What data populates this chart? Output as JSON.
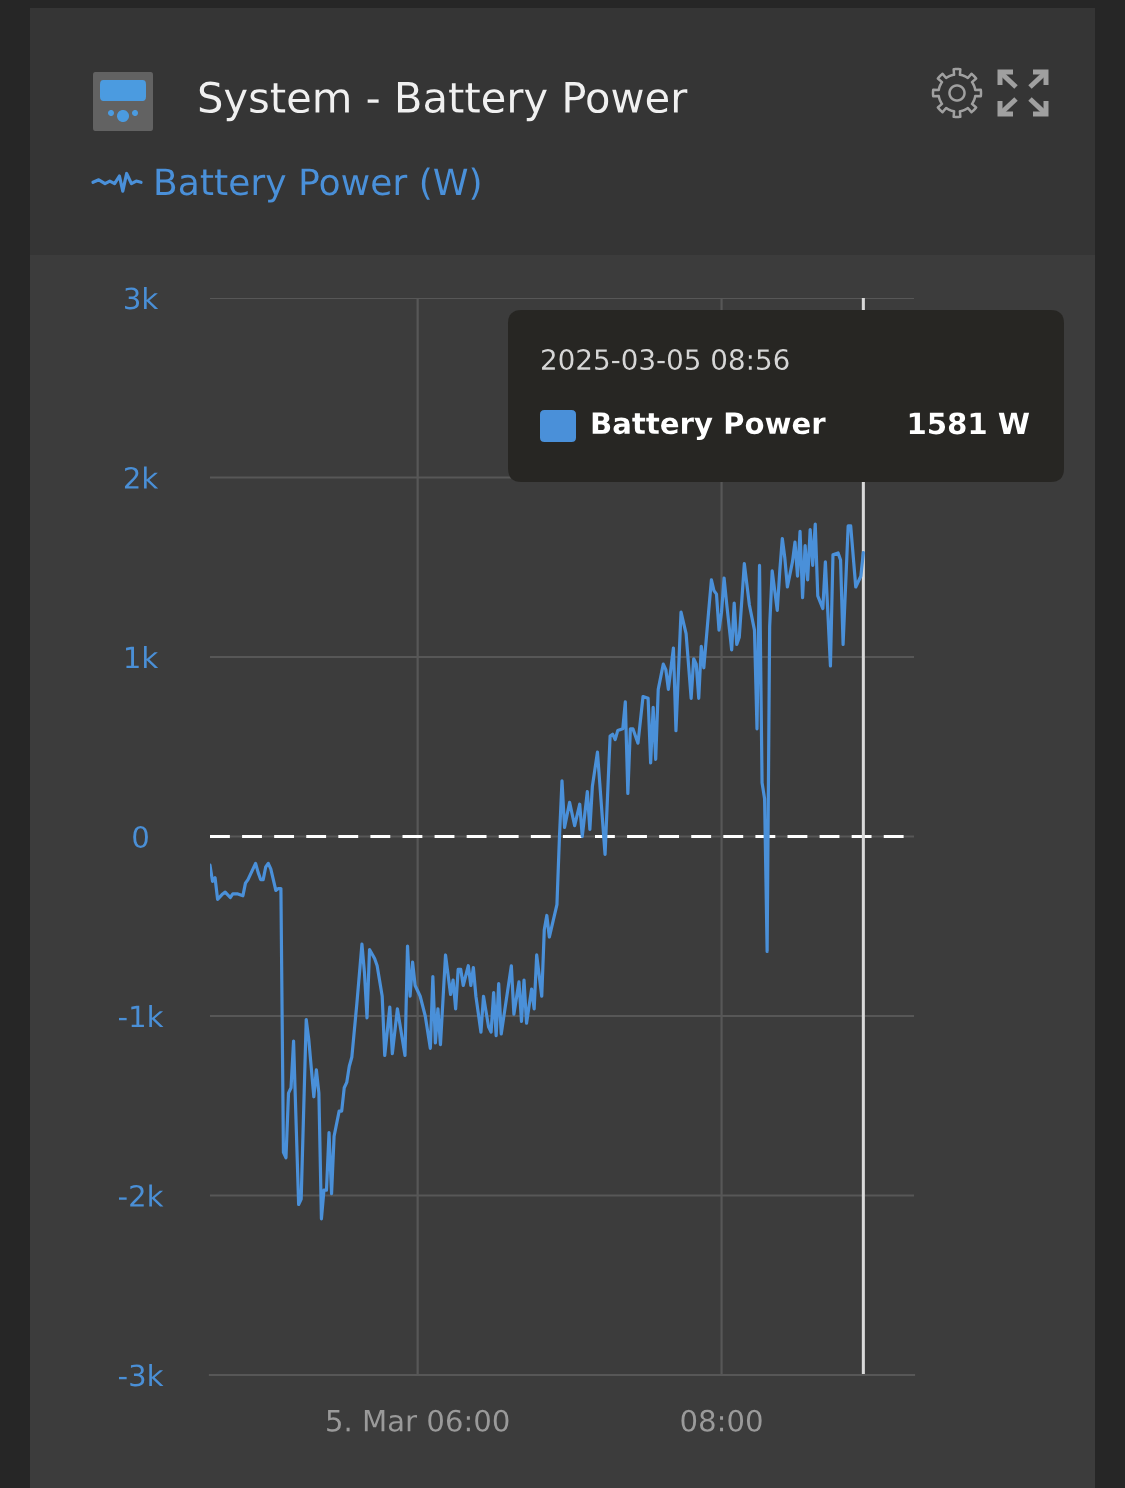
{
  "chart_data": {
    "type": "line",
    "title": "System - Battery Power",
    "x": [
      "2025-03-05T04:38",
      "2025-03-05T04:39",
      "2025-03-05T04:40",
      "2025-03-05T04:41",
      "2025-03-05T04:43",
      "2025-03-05T04:44",
      "2025-03-05T04:46",
      "2025-03-05T04:47",
      "2025-03-05T04:49",
      "2025-03-05T04:51",
      "2025-03-05T04:52",
      "2025-03-05T04:53",
      "2025-03-05T04:56",
      "2025-03-05T04:57",
      "2025-03-05T04:58",
      "2025-03-05T04:59",
      "2025-03-05T05:00",
      "2025-03-05T05:01",
      "2025-03-05T05:02",
      "2025-03-05T05:04",
      "2025-03-05T05:05",
      "2025-03-05T05:06",
      "2025-03-05T05:07",
      "2025-03-05T05:08",
      "2025-03-05T05:09",
      "2025-03-05T05:10",
      "2025-03-05T05:11",
      "2025-03-05T05:13",
      "2025-03-05T05:14",
      "2025-03-05T05:16",
      "2025-03-05T05:17",
      "2025-03-05T05:19",
      "2025-03-05T05:20",
      "2025-03-05T05:21",
      "2025-03-05T05:22",
      "2025-03-05T05:23",
      "2025-03-05T05:24",
      "2025-03-05T05:25",
      "2025-03-05T05:26",
      "2025-03-05T05:27",
      "2025-03-05T05:29",
      "2025-03-05T05:30",
      "2025-03-05T05:31",
      "2025-03-05T05:32",
      "2025-03-05T05:33",
      "2025-03-05T05:34",
      "2025-03-05T05:36",
      "2025-03-05T05:38",
      "2025-03-05T05:39",
      "2025-03-05T05:40",
      "2025-03-05T05:41",
      "2025-03-05T05:43",
      "2025-03-05T05:44",
      "2025-03-05T05:46",
      "2025-03-05T05:47",
      "2025-03-05T05:49",
      "2025-03-05T05:50",
      "2025-03-05T05:52",
      "2025-03-05T05:55",
      "2025-03-05T05:56",
      "2025-03-05T05:57",
      "2025-03-05T05:58",
      "2025-03-05T05:59",
      "2025-03-05T06:01",
      "2025-03-05T06:03",
      "2025-03-05T06:05",
      "2025-03-05T06:06",
      "2025-03-05T06:07",
      "2025-03-05T06:08",
      "2025-03-05T06:09",
      "2025-03-05T06:11",
      "2025-03-05T06:13",
      "2025-03-05T06:14",
      "2025-03-05T06:15",
      "2025-03-05T06:16",
      "2025-03-05T06:17",
      "2025-03-05T06:18",
      "2025-03-05T06:20",
      "2025-03-05T06:21",
      "2025-03-05T06:22",
      "2025-03-05T06:23",
      "2025-03-05T06:25",
      "2025-03-05T06:26",
      "2025-03-05T06:28",
      "2025-03-05T06:29",
      "2025-03-05T06:30",
      "2025-03-05T06:31",
      "2025-03-05T06:32",
      "2025-03-05T06:33",
      "2025-03-05T06:37",
      "2025-03-05T06:38",
      "2025-03-05T06:40",
      "2025-03-05T06:41",
      "2025-03-05T06:42",
      "2025-03-05T06:43",
      "2025-03-05T06:45",
      "2025-03-05T06:46",
      "2025-03-05T06:47",
      "2025-03-05T06:49",
      "2025-03-05T06:50",
      "2025-03-05T06:51",
      "2025-03-05T06:52",
      "2025-03-05T06:55",
      "2025-03-05T06:56",
      "2025-03-05T06:57",
      "2025-03-05T06:58",
      "2025-03-05T07:00",
      "2025-03-05T07:02",
      "2025-03-05T07:04",
      "2025-03-05T07:05",
      "2025-03-05T07:07",
      "2025-03-05T07:08",
      "2025-03-05T07:09",
      "2025-03-05T07:11",
      "2025-03-05T07:14",
      "2025-03-05T07:16",
      "2025-03-05T07:17",
      "2025-03-05T07:18",
      "2025-03-05T07:19",
      "2025-03-05T07:21",
      "2025-03-05T07:22",
      "2025-03-05T07:23",
      "2025-03-05T07:24",
      "2025-03-05T07:25",
      "2025-03-05T07:27",
      "2025-03-05T07:29",
      "2025-03-05T07:31",
      "2025-03-05T07:32",
      "2025-03-05T07:33",
      "2025-03-05T07:34",
      "2025-03-05T07:35",
      "2025-03-05T07:37",
      "2025-03-05T07:38",
      "2025-03-05T07:39",
      "2025-03-05T07:41",
      "2025-03-05T07:42",
      "2025-03-05T07:44",
      "2025-03-05T07:46",
      "2025-03-05T07:48",
      "2025-03-05T07:49",
      "2025-03-05T07:50",
      "2025-03-05T07:51",
      "2025-03-05T07:52",
      "2025-03-05T07:53",
      "2025-03-05T07:55",
      "2025-03-05T07:56",
      "2025-03-05T07:57",
      "2025-03-05T07:58",
      "2025-03-05T07:59",
      "2025-03-05T08:00",
      "2025-03-05T08:01",
      "2025-03-05T08:02",
      "2025-03-05T08:04",
      "2025-03-05T08:05",
      "2025-03-05T08:06",
      "2025-03-05T08:07",
      "2025-03-05T08:09",
      "2025-03-05T08:11",
      "2025-03-05T08:13",
      "2025-03-05T08:14",
      "2025-03-05T08:15",
      "2025-03-05T08:16",
      "2025-03-05T08:17",
      "2025-03-05T08:18",
      "2025-03-05T08:19",
      "2025-03-05T08:20",
      "2025-03-05T08:22",
      "2025-03-05T08:23",
      "2025-03-05T08:24",
      "2025-03-05T08:25",
      "2025-03-05T08:26",
      "2025-03-05T08:28",
      "2025-03-05T08:29",
      "2025-03-05T08:30",
      "2025-03-05T08:31",
      "2025-03-05T08:32",
      "2025-03-05T08:33",
      "2025-03-05T08:34",
      "2025-03-05T08:35",
      "2025-03-05T08:36",
      "2025-03-05T08:37",
      "2025-03-05T08:38",
      "2025-03-05T08:40",
      "2025-03-05T08:41",
      "2025-03-05T08:43",
      "2025-03-05T08:44",
      "2025-03-05T08:46",
      "2025-03-05T08:47",
      "2025-03-05T08:48",
      "2025-03-05T08:50",
      "2025-03-05T08:51",
      "2025-03-05T08:53",
      "2025-03-05T08:55",
      "2025-03-05T08:56"
    ],
    "series": [
      {
        "name": "Battery Power (W)",
        "color": "#4a90d9",
        "values": [
          -160,
          -250,
          -230,
          -350,
          -320,
          -310,
          -340,
          -320,
          -320,
          -330,
          -260,
          -240,
          -150,
          -200,
          -240,
          -240,
          -170,
          -150,
          -180,
          -300,
          -290,
          -290,
          -1760,
          -1790,
          -1430,
          -1400,
          -1140,
          -2050,
          -2020,
          -1020,
          -1130,
          -1450,
          -1300,
          -1430,
          -2130,
          -1970,
          -1970,
          -1650,
          -1990,
          -1670,
          -1530,
          -1530,
          -1400,
          -1370,
          -1280,
          -1230,
          -930,
          -600,
          -760,
          -1010,
          -630,
          -680,
          -720,
          -890,
          -1220,
          -950,
          -1210,
          -960,
          -1220,
          -610,
          -890,
          -700,
          -830,
          -890,
          -1000,
          -1180,
          -780,
          -1150,
          -960,
          -1160,
          -660,
          -880,
          -800,
          -960,
          -740,
          -740,
          -830,
          -720,
          -830,
          -730,
          -890,
          -1090,
          -890,
          -1060,
          -1090,
          -870,
          -1110,
          -820,
          -1100,
          -720,
          -990,
          -810,
          -1030,
          -800,
          -1040,
          -850,
          -960,
          -660,
          -890,
          -520,
          -440,
          -560,
          -380,
          0,
          310,
          50,
          190,
          60,
          180,
          0,
          250,
          40,
          280,
          470,
          -100,
          560,
          570,
          540,
          590,
          600,
          750,
          240,
          600,
          600,
          520,
          780,
          770,
          410,
          720,
          430,
          820,
          960,
          930,
          820,
          1050,
          590,
          1250,
          1130,
          770,
          990,
          960,
          770,
          1060,
          940,
          1270,
          1430,
          1370,
          1350,
          1150,
          1250,
          1440,
          1300,
          1040,
          1300,
          1070,
          1110,
          1520,
          1290,
          1150,
          600,
          1510,
          300,
          210,
          -640,
          1170,
          1480,
          1260,
          1480,
          1660,
          1550,
          1390,
          1530,
          1640,
          1450,
          1700,
          1330,
          1620,
          1430,
          1710,
          1510,
          1740,
          1340,
          1270,
          1530,
          950,
          1570,
          1580,
          1540,
          1070,
          1730,
          1730,
          1390,
          1450,
          1581
        ]
      }
    ],
    "xlim": [
      "2025-03-05T04:38",
      "2025-03-05T09:16"
    ],
    "xticks": [
      {
        "value": "2025-03-05T06:00",
        "label": "5. Mar 06:00"
      },
      {
        "value": "2025-03-05T08:00",
        "label": "08:00"
      }
    ],
    "ylim": [
      -3000,
      3000
    ],
    "yticks": [
      {
        "value": -3000,
        "label": "-3k"
      },
      {
        "value": -2000,
        "label": "-2k"
      },
      {
        "value": -1000,
        "label": "-1k"
      },
      0,
      {
        "value": 1000,
        "label": "1k"
      },
      {
        "value": 2000,
        "label": "2k"
      },
      {
        "value": 3000,
        "label": "3k"
      }
    ],
    "grid": true,
    "legend": "top left",
    "line_style": "solid",
    "ref_lines": [
      {
        "axis": "y",
        "value": 0,
        "color": "#ffffff",
        "line_style": "dashed"
      },
      {
        "axis": "x",
        "value": "2025-03-05T08:56",
        "color": "#d9d9d9",
        "line_style": "solid"
      }
    ],
    "annotations": [
      "2025-03-05 08:56",
      "Battery Power",
      "1581 W"
    ]
  }
}
